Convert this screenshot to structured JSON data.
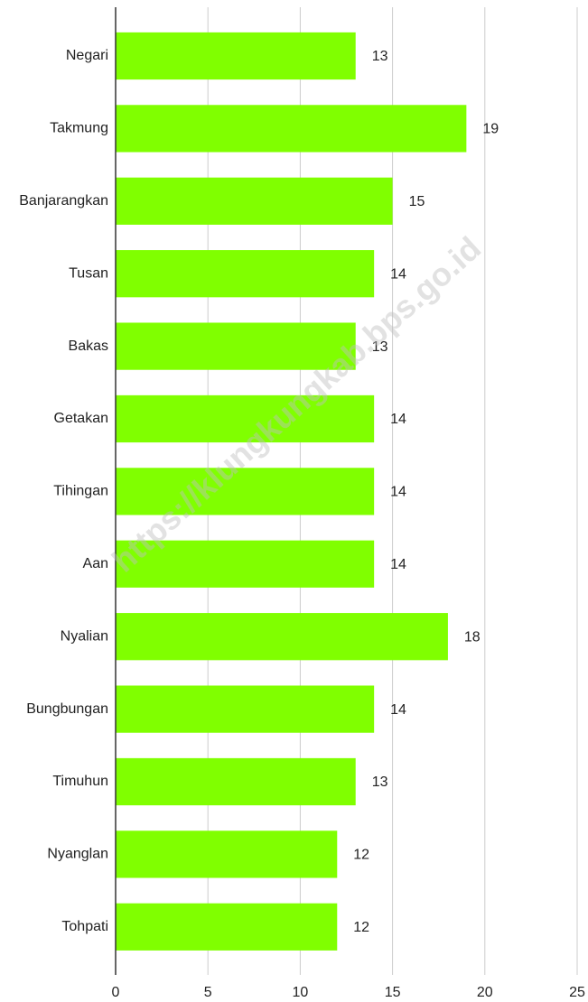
{
  "chart_data": {
    "type": "bar",
    "orientation": "horizontal",
    "categories": [
      "Negari",
      "Takmung",
      "Banjarangkan",
      "Tusan",
      "Bakas",
      "Getakan",
      "Tihingan",
      "Aan",
      "Nyalian",
      "Bungbungan",
      "Timuhun",
      "Nyanglan",
      "Tohpati"
    ],
    "values": [
      13,
      19,
      15,
      14,
      13,
      14,
      14,
      14,
      18,
      14,
      13,
      12,
      12
    ],
    "color": "#80ff00",
    "xlim": [
      0,
      25
    ],
    "xticks": [
      0,
      5,
      10,
      15,
      20,
      25
    ],
    "grid": true,
    "watermark": "https://klungkungkab.bps.go.id"
  }
}
